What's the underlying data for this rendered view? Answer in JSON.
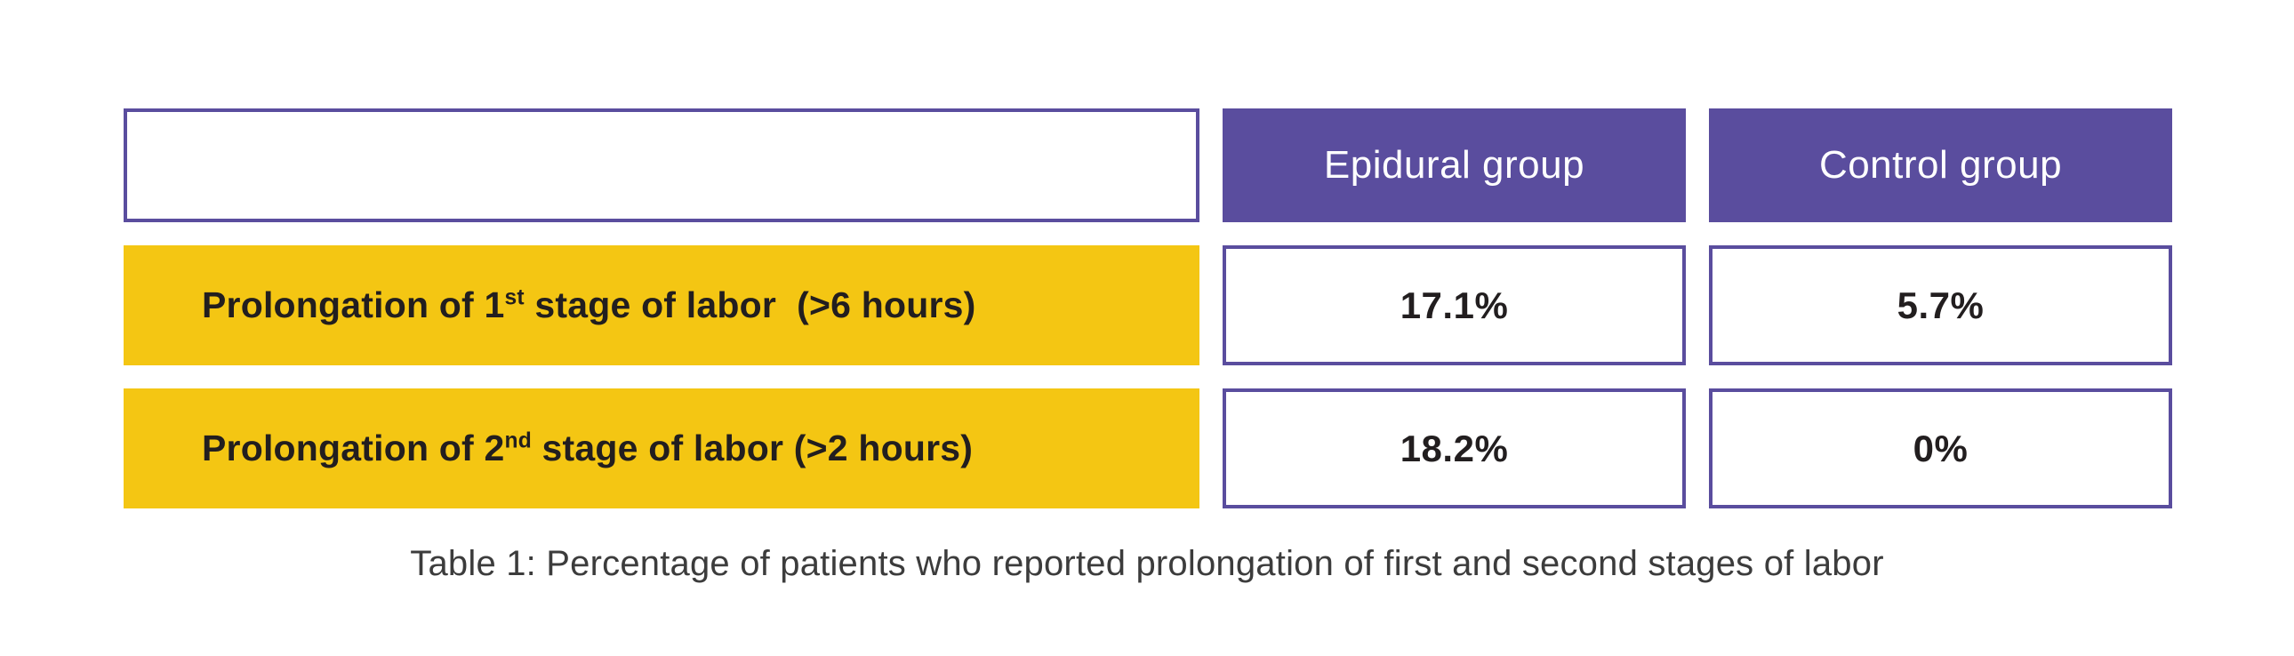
{
  "chart_data": {
    "type": "table",
    "title": "Table 1: Percentage of patients who reported prolongation of first and second stages of labor",
    "columns": [
      "",
      "Epidural group",
      "Control group"
    ],
    "rows": [
      {
        "label": "Prolongation of 1st stage of labor (>6 hours)",
        "epidural_group": "17.1%",
        "control_group": "5.7%"
      },
      {
        "label": "Prolongation of 2nd stage of labor (>2 hours)",
        "epidural_group": "18.2%",
        "control_group": "0%"
      }
    ],
    "layout": "header row purple, row labels yellow, value cells white with purple border"
  },
  "table": {
    "headers": {
      "epidural": "Epidural group",
      "control": "Control group"
    },
    "rows": [
      {
        "label_prefix": "Prolongation of 1",
        "label_sup": "st",
        "label_suffix": " stage of labor  (>6 hours)",
        "epidural": "17.1%",
        "control": "5.7%"
      },
      {
        "label_prefix": "Prolongation of 2",
        "label_sup": "nd",
        "label_suffix": " stage of labor (>2 hours)",
        "epidural": "18.2%",
        "control": "0%"
      }
    ]
  },
  "caption": "Table 1: Percentage of patients who reported prolongation of first and second stages of labor",
  "colors": {
    "purple": "#5a4d9e",
    "yellow": "#f4c613",
    "header_text": "#ffffff",
    "body_text": "#221e1f",
    "caption_text": "#3c3c3c",
    "background": "#ffffff"
  }
}
